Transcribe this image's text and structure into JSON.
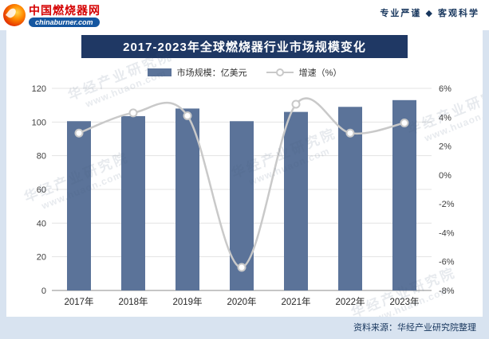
{
  "header": {
    "logo": {
      "title": "中国燃烧器网",
      "subtitle": "chinaburner.com"
    },
    "slogan": "专业严谨 ◆ 客观科学"
  },
  "title": "2017-2023年全球燃烧器行业市场规模变化",
  "legend": {
    "bar_label": "市场规模：亿美元",
    "line_label": "增速（%）"
  },
  "footer": {
    "source": "资料来源：华经产业研究院整理"
  },
  "watermark": {
    "line1": "华经产业研究院",
    "line2": "www.huaon.com"
  },
  "colors": {
    "bar": "#5B7399",
    "line": "#C9C9C9",
    "title_bg": "#1F3864",
    "accent_red": "#D50000",
    "frame": "#D8E3F0",
    "text_dark": "#17365D"
  },
  "chart_data": {
    "type": "bar+line",
    "title": "2017-2023年全球燃烧器行业市场规模变化",
    "categories": [
      "2017年",
      "2018年",
      "2019年",
      "2020年",
      "2021年",
      "2022年",
      "2023年"
    ],
    "series": [
      {
        "name": "市场规模：亿美元",
        "type": "bar",
        "axis": "left",
        "values": [
          100.5,
          103.5,
          108,
          100.5,
          106,
          109,
          113
        ]
      },
      {
        "name": "增速（%）",
        "type": "line",
        "axis": "right",
        "values": [
          2.9,
          4.3,
          4.1,
          -6.4,
          4.9,
          2.9,
          3.6
        ]
      }
    ],
    "left_axis": {
      "min": 0,
      "max": 120,
      "step": 20
    },
    "right_axis": {
      "min": -8,
      "max": 6,
      "step": 2,
      "suffix": "%"
    },
    "grid": true,
    "legend_position": "top"
  }
}
